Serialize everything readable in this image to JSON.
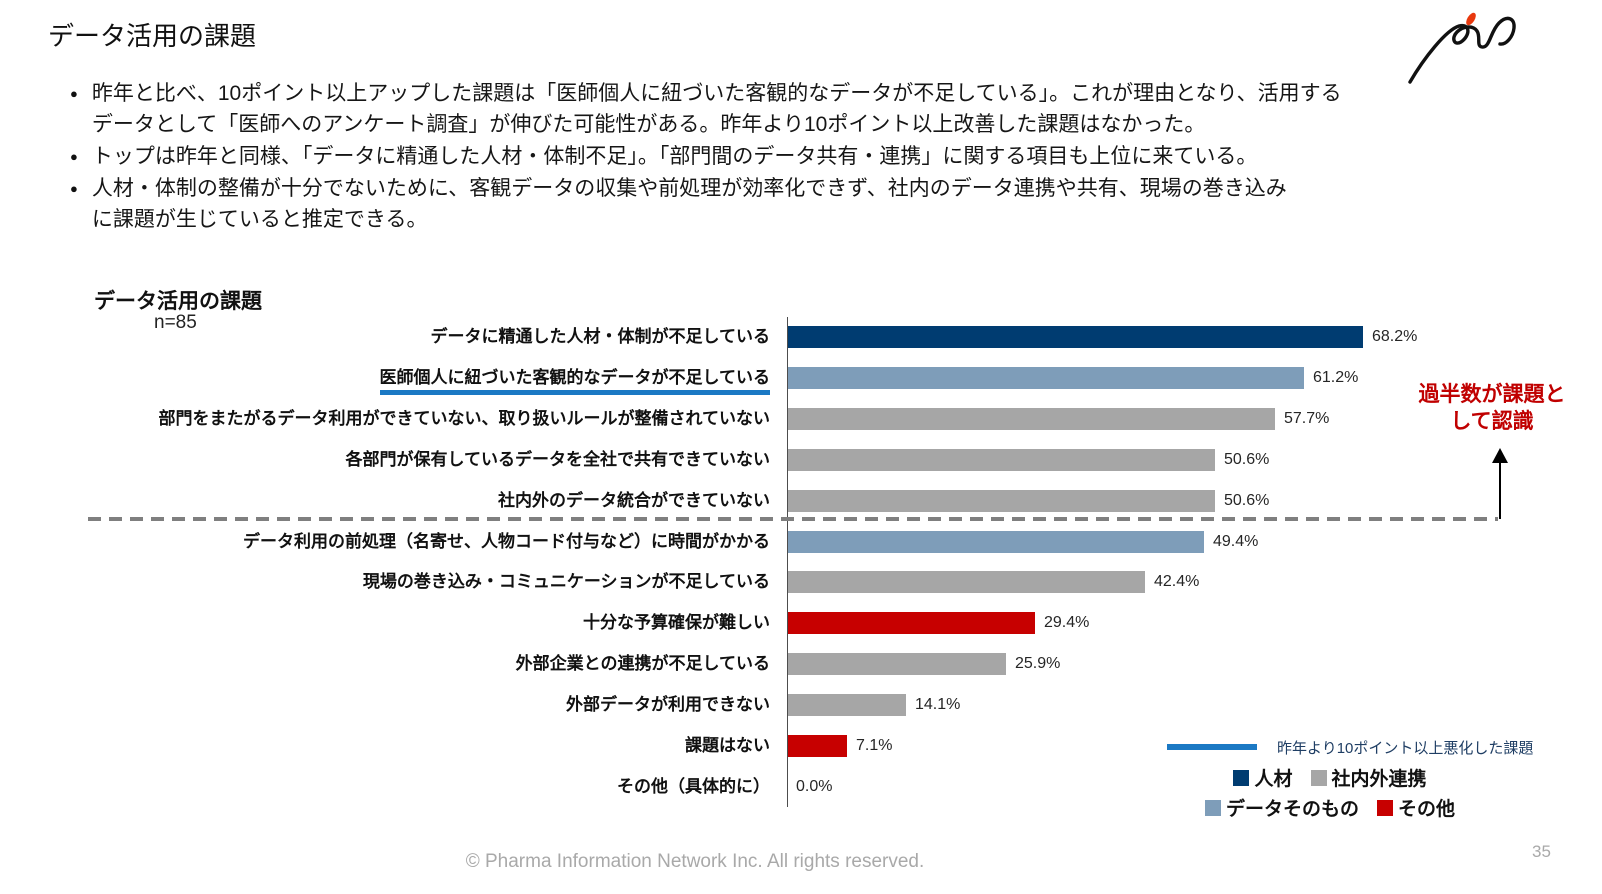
{
  "slide": {
    "title": "データ活用の課題",
    "bullets": [
      "昨年と比べ、10ポイント以上アップした課題は「医師個人に紐づいた客観的なデータが不足している」。これが理由となり、活用する\nデータとして「医師へのアンケート調査」が伸びた可能性がある。昨年より10ポイント以上改善した課題はなかった。",
      "トップは昨年と同様、「データに精通した人材・体制不足」。「部門間のデータ共有・連携」に関する項目も上位に来ている。",
      "人材・体制の整備が十分でないために、客観データの収集や前処理が効率化できず、社内のデータ連携や共有、現場の巻き込み\nに課題が生じていると推定できる。"
    ],
    "footer": "© Pharma Information Network Inc.  All rights reserved.",
    "page_number": "35"
  },
  "chart_data": {
    "type": "bar",
    "orientation": "horizontal",
    "title": "データ活用の課題",
    "n_label": "n=85",
    "n": 85,
    "xlim": [
      0,
      100
    ],
    "grid": false,
    "categories": [
      "データに精通した人材・体制が不足している",
      "医師個人に紐づいた客観的なデータが不足している",
      "部門をまたがるデータ利用ができていない、取り扱いルールが整備されていない",
      "各部門が保有しているデータを全社で共有できていない",
      "社内外のデータ統合ができていない",
      "データ利用の前処理（名寄せ、人物コード付与など）に時間がかかる",
      "現場の巻き込み・コミュニケーションが不足している",
      "十分な予算確保が難しい",
      "外部企業との連携が不足している",
      "外部データが利用できない",
      "課題はない",
      "その他（具体的に）"
    ],
    "values": [
      68.2,
      61.2,
      57.7,
      50.6,
      50.6,
      49.4,
      42.4,
      29.4,
      25.9,
      14.1,
      7.1,
      0.0
    ],
    "value_labels": [
      "68.2%",
      "61.2%",
      "57.7%",
      "50.6%",
      "50.6%",
      "49.4%",
      "42.4%",
      "29.4%",
      "25.9%",
      "14.1%",
      "7.1%",
      "0.0%"
    ],
    "bar_groups": [
      "人材",
      "データそのもの",
      "社内外連携",
      "社内外連携",
      "社内外連携",
      "データそのもの",
      "社内外連携",
      "その他",
      "社内外連携",
      "社内外連携",
      "その他",
      null
    ],
    "bar_colors": [
      "#003c71",
      "#7e9db9",
      "#a6a6a6",
      "#a6a6a6",
      "#a6a6a6",
      "#7e9db9",
      "#a6a6a6",
      "#c70000",
      "#a6a6a6",
      "#a6a6a6",
      "#c70000",
      null
    ],
    "underlined_category_index": 1,
    "underline_color": "#1b79c4",
    "separator_after_index": 4
  },
  "annotation": {
    "text": "過半数が課題と\nして認識",
    "color": "#c00000"
  },
  "legend_line": {
    "label": "昨年より10ポイント以上悪化した課題",
    "color": "#1b79c4"
  },
  "legend": {
    "rows": [
      [
        {
          "label": "人材",
          "color": "#003c71"
        },
        {
          "label": "社内外連携",
          "color": "#a6a6a6"
        }
      ],
      [
        {
          "label": "データそのもの",
          "color": "#7e9db9"
        },
        {
          "label": "その他",
          "color": "#c70000"
        }
      ]
    ]
  }
}
